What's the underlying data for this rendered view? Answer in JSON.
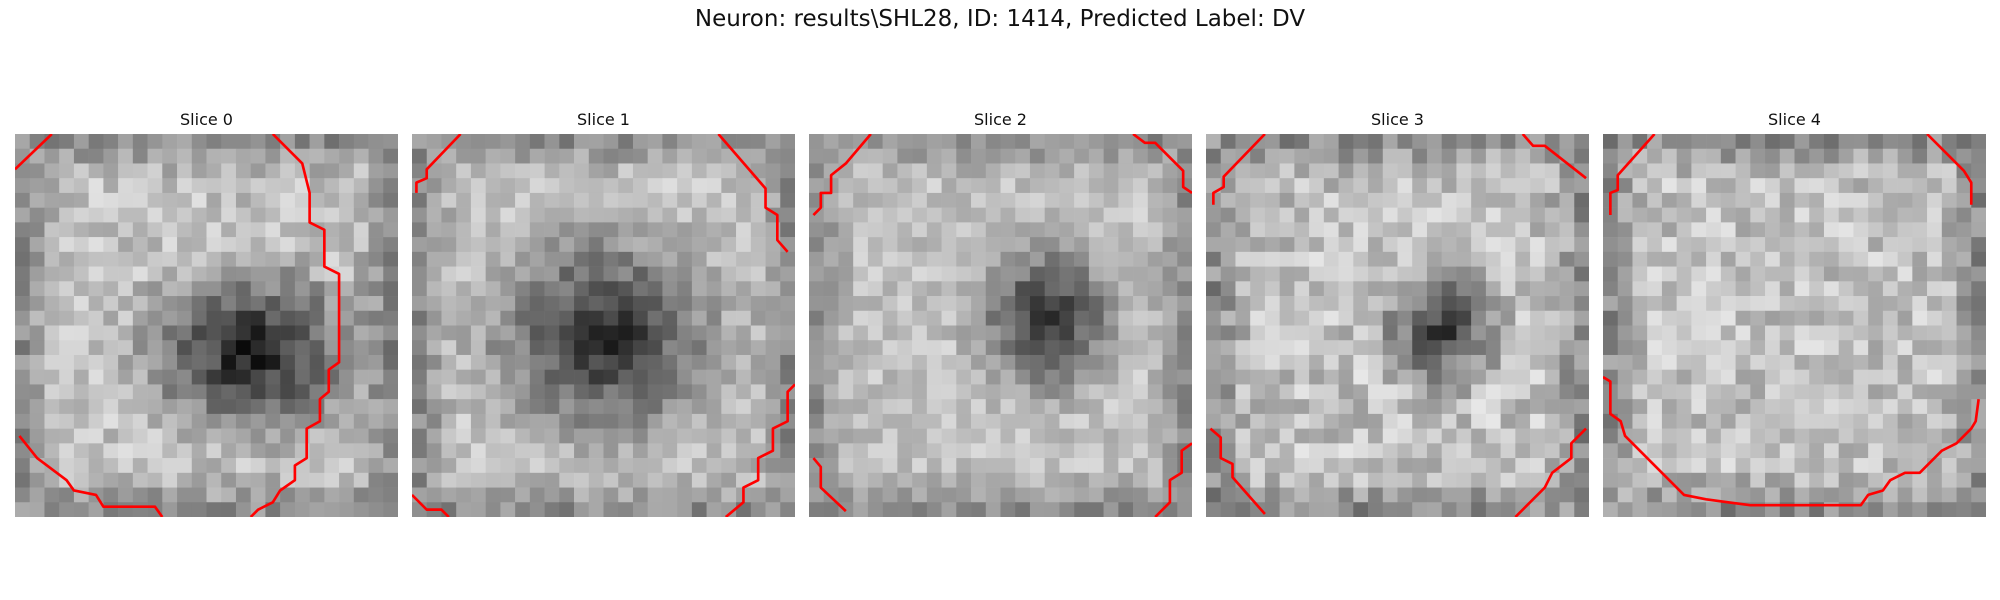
{
  "figure": {
    "title": "Neuron: results\\SHL28, ID: 1414, Predicted Label: DV"
  },
  "slices": [
    {
      "title": "Slice 0",
      "dark_center": [
        0.62,
        0.57
      ],
      "dark_radius": [
        0.28,
        0.22
      ],
      "dark_strength": 0.78,
      "contrast": 0.55,
      "seed": 11
    },
    {
      "title": "Slice 1",
      "dark_center": [
        0.5,
        0.53
      ],
      "dark_radius": [
        0.3,
        0.27
      ],
      "dark_strength": 0.72,
      "contrast": 0.5,
      "seed": 23
    },
    {
      "title": "Slice 2",
      "dark_center": [
        0.62,
        0.48
      ],
      "dark_radius": [
        0.19,
        0.2
      ],
      "dark_strength": 0.7,
      "contrast": 0.45,
      "seed": 37
    },
    {
      "title": "Slice 3",
      "dark_center": [
        0.62,
        0.51
      ],
      "dark_radius": [
        0.16,
        0.15
      ],
      "dark_strength": 0.68,
      "contrast": 0.65,
      "seed": 41
    },
    {
      "title": "Slice 4",
      "dark_center": [
        0.5,
        0.5
      ],
      "dark_radius": [
        0.0,
        0.0
      ],
      "dark_strength": 0.0,
      "contrast": 0.6,
      "seed": 53
    }
  ],
  "contour_color": "#ff0000"
}
